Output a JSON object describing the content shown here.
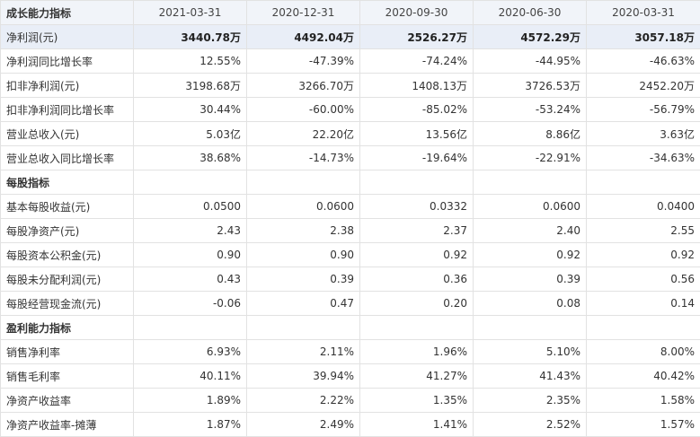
{
  "table": {
    "title": "成长能力指标",
    "dates": [
      "2021-03-31",
      "2020-12-31",
      "2020-09-30",
      "2020-06-30",
      "2020-03-31"
    ],
    "rows": [
      {
        "label": "净利润(元)",
        "values": [
          "3440.78万",
          "4492.04万",
          "2526.27万",
          "4572.29万",
          "3057.18万"
        ]
      },
      {
        "label": "净利润同比增长率",
        "values": [
          "12.55%",
          "-47.39%",
          "-74.24%",
          "-44.95%",
          "-46.63%"
        ]
      },
      {
        "label": "扣非净利润(元)",
        "values": [
          "3198.68万",
          "3266.70万",
          "1408.13万",
          "3726.53万",
          "2452.20万"
        ]
      },
      {
        "label": "扣非净利润同比增长率",
        "values": [
          "30.44%",
          "-60.00%",
          "-85.02%",
          "-53.24%",
          "-56.79%"
        ]
      },
      {
        "label": "营业总收入(元)",
        "values": [
          "5.03亿",
          "22.20亿",
          "13.56亿",
          "8.86亿",
          "3.63亿"
        ]
      },
      {
        "label": "营业总收入同比增长率",
        "values": [
          "38.68%",
          "-14.73%",
          "-19.64%",
          "-22.91%",
          "-34.63%"
        ]
      },
      {
        "label": "每股指标",
        "values": [
          "",
          "",
          "",
          "",
          ""
        ]
      },
      {
        "label": "基本每股收益(元)",
        "values": [
          "0.0500",
          "0.0600",
          "0.0332",
          "0.0600",
          "0.0400"
        ]
      },
      {
        "label": "每股净资产(元)",
        "values": [
          "2.43",
          "2.38",
          "2.37",
          "2.40",
          "2.55"
        ]
      },
      {
        "label": "每股资本公积金(元)",
        "values": [
          "0.90",
          "0.90",
          "0.92",
          "0.92",
          "0.92"
        ]
      },
      {
        "label": "每股未分配利润(元)",
        "values": [
          "0.43",
          "0.39",
          "0.36",
          "0.39",
          "0.56"
        ]
      },
      {
        "label": "每股经营现金流(元)",
        "values": [
          "-0.06",
          "0.47",
          "0.20",
          "0.08",
          "0.14"
        ]
      },
      {
        "label": "盈利能力指标",
        "values": [
          "",
          "",
          "",
          "",
          ""
        ]
      },
      {
        "label": "销售净利率",
        "values": [
          "6.93%",
          "2.11%",
          "1.96%",
          "5.10%",
          "8.00%"
        ]
      },
      {
        "label": "销售毛利率",
        "values": [
          "40.11%",
          "39.94%",
          "41.27%",
          "41.43%",
          "40.42%"
        ]
      },
      {
        "label": "净资产收益率",
        "values": [
          "1.89%",
          "2.22%",
          "1.35%",
          "2.35%",
          "1.58%"
        ]
      },
      {
        "label": "净资产收益率-摊薄",
        "values": [
          "1.87%",
          "2.49%",
          "1.41%",
          "2.52%",
          "1.57%"
        ]
      }
    ]
  }
}
